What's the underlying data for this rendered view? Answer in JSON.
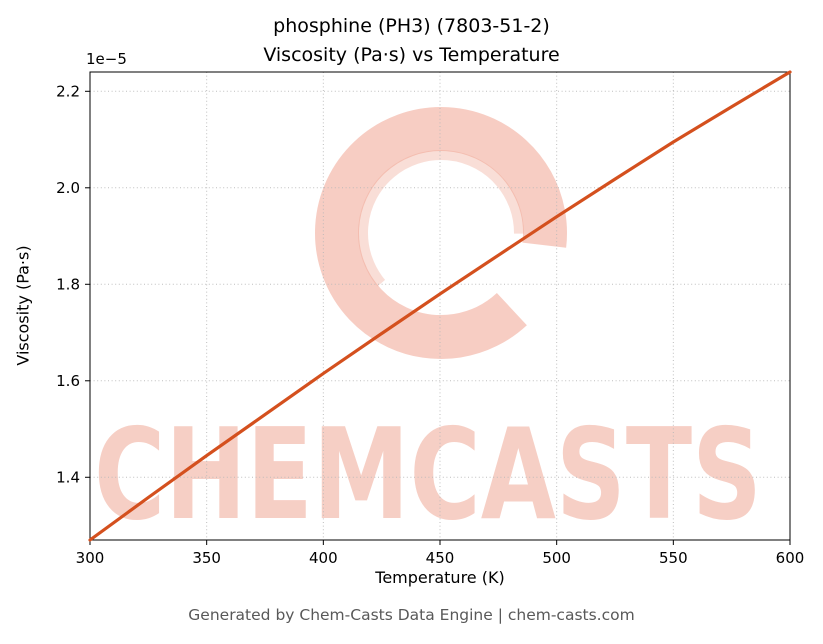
{
  "title_line1": "phosphine (PH3) (7803-51-2)",
  "title_line2": "Viscosity (Pa·s) vs Temperature",
  "offset_label": "1e−5",
  "footer": "Generated by Chem-Casts Data Engine | chem-casts.com",
  "watermark": {
    "word": "CHEMCASTS",
    "mark": "C",
    "color": "#efa08c"
  },
  "chart_data": {
    "type": "line",
    "title": "phosphine (PH3) (7803-51-2) — Viscosity (Pa·s) vs Temperature",
    "xlabel": "Temperature (K)",
    "ylabel": "Viscosity (Pa·s)",
    "y_unit_scale": "1e-5",
    "x": [
      300,
      325,
      350,
      375,
      400,
      425,
      450,
      475,
      500,
      525,
      550,
      575,
      600
    ],
    "y": [
      1.27,
      1.358,
      1.445,
      1.53,
      1.615,
      1.698,
      1.78,
      1.86,
      1.94,
      2.018,
      2.095,
      2.168,
      2.24
    ],
    "xticks": [
      300,
      350,
      400,
      450,
      500,
      550,
      600
    ],
    "yticks": [
      1.4,
      1.6,
      1.8,
      2.0,
      2.2
    ],
    "xlim": [
      300,
      600
    ],
    "ylim": [
      1.27,
      2.24
    ],
    "line_color": "#d4501e",
    "grid": true,
    "legend": "none"
  }
}
